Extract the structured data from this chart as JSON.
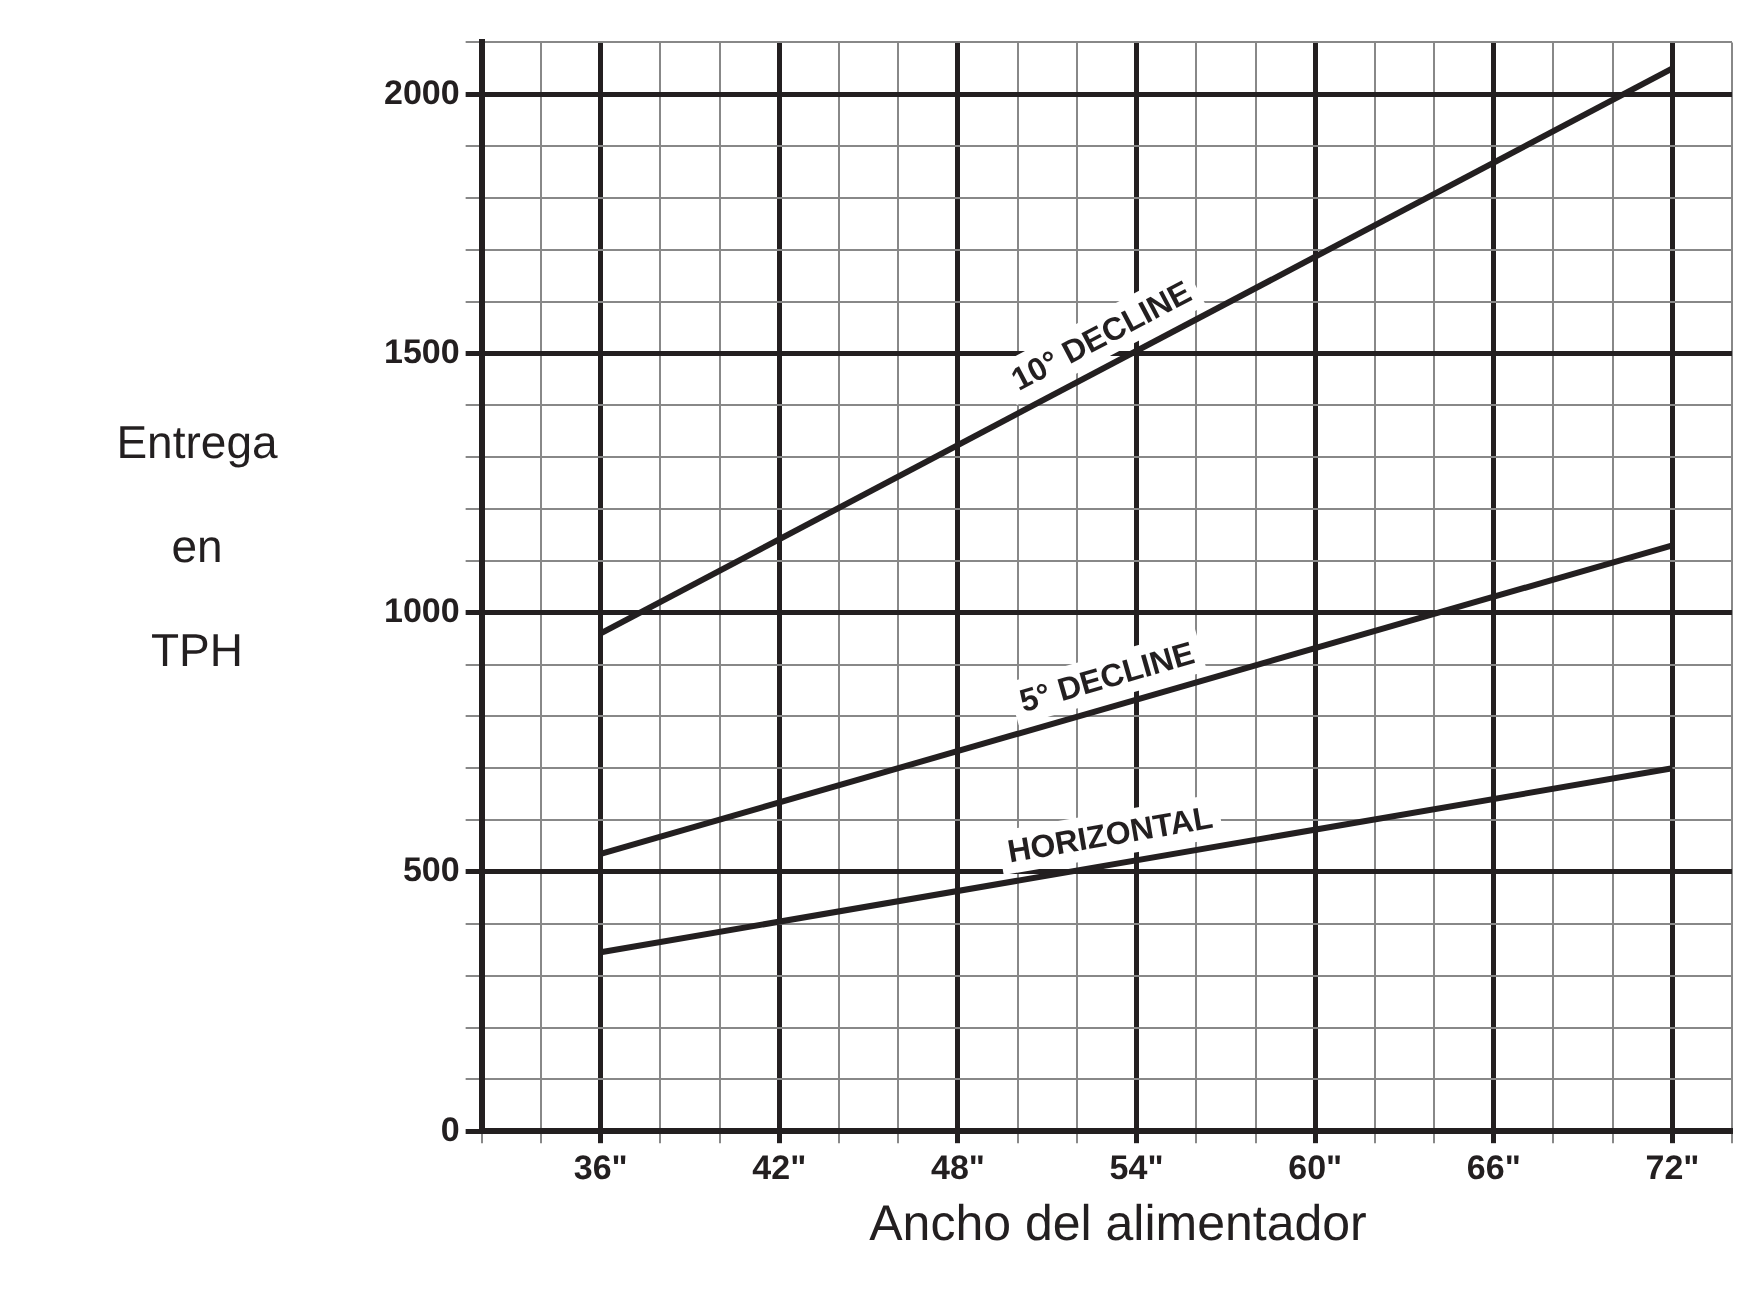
{
  "chart_data": {
    "type": "line",
    "xlabel": "Ancho del alimentador",
    "ylabel": "Entrega en TPH",
    "series": [
      {
        "name": "10° DECLINE",
        "color": "#231f20",
        "values": [
          960,
          2050
        ]
      },
      {
        "name": "5° DECLINE",
        "color": "#231f20",
        "values": [
          535,
          1130
        ]
      },
      {
        "name": "HORIZONTAL",
        "color": "#231f20",
        "values": [
          345,
          700
        ]
      }
    ],
    "x": [
      36,
      72
    ],
    "xlim": [
      32,
      74
    ],
    "xticks": [
      {
        "value": 32,
        "label": null
      },
      {
        "value": 34,
        "label": null
      },
      {
        "value": 36,
        "label": "36\""
      },
      {
        "value": 38,
        "label": null
      },
      {
        "value": 40,
        "label": null
      },
      {
        "value": 42,
        "label": "42\""
      },
      {
        "value": 44,
        "label": null
      },
      {
        "value": 46,
        "label": null
      },
      {
        "value": 48,
        "label": "48\""
      },
      {
        "value": 50,
        "label": null
      },
      {
        "value": 52,
        "label": null
      },
      {
        "value": 54,
        "label": "54\""
      },
      {
        "value": 56,
        "label": null
      },
      {
        "value": 58,
        "label": null
      },
      {
        "value": 60,
        "label": "60\""
      },
      {
        "value": 62,
        "label": null
      },
      {
        "value": 64,
        "label": null
      },
      {
        "value": 66,
        "label": "66\""
      },
      {
        "value": 68,
        "label": null
      },
      {
        "value": 70,
        "label": null
      },
      {
        "value": 72,
        "label": "72\""
      },
      {
        "value": 74,
        "label": null
      }
    ],
    "ylim": [
      0,
      2100
    ],
    "yticks": [
      0,
      {
        "value": 100,
        "label": null
      },
      {
        "value": 200,
        "label": null
      },
      {
        "value": 300,
        "label": null
      },
      {
        "value": 400,
        "label": null
      },
      500,
      {
        "value": 600,
        "label": null
      },
      {
        "value": 700,
        "label": null
      },
      {
        "value": 800,
        "label": null
      },
      {
        "value": 900,
        "label": null
      },
      1000,
      {
        "value": 1100,
        "label": null
      },
      {
        "value": 1200,
        "label": null
      },
      {
        "value": 1300,
        "label": null
      },
      {
        "value": 1400,
        "label": null
      },
      1500,
      {
        "value": 1600,
        "label": null
      },
      {
        "value": 1700,
        "label": null
      },
      {
        "value": 1800,
        "label": null
      },
      {
        "value": 1900,
        "label": null
      },
      2000,
      {
        "value": 2100,
        "label": null
      }
    ],
    "grid": true,
    "legend": false,
    "marker": "none",
    "line_style": "solid"
  }
}
